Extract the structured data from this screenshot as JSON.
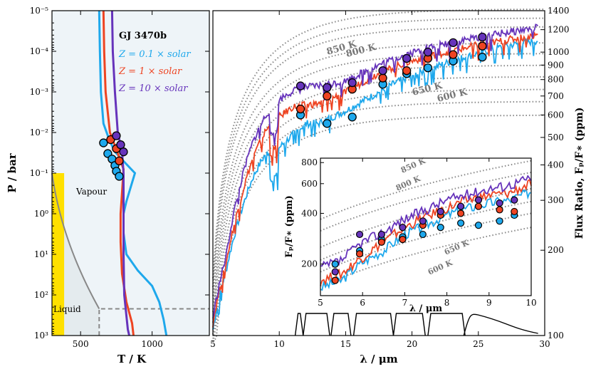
{
  "chart_data": [
    {
      "type": "line",
      "title": "",
      "xlabel": "T / K",
      "ylabel": "P / bar",
      "xlim": [
        300,
        1400
      ],
      "ylim_log_bar": [
        1e-05,
        1000.0
      ],
      "y_axis": "log, inverted",
      "x_ticks": [
        "500",
        "1000"
      ],
      "y_ticks": [
        "10⁻⁵",
        "10⁻⁴",
        "10⁻³",
        "10⁻²",
        "10⁻¹",
        "10⁰",
        "10¹",
        "10²",
        "10³"
      ],
      "legend_title": "GJ 3470b",
      "regions": [
        {
          "name": "Vapour",
          "label": "Vapour"
        },
        {
          "name": "Liquid",
          "label": "Liquid"
        }
      ],
      "series": [
        {
          "name": "Z = 0.1 × solar",
          "color": "#1ea8ec",
          "points": [
            [
              630,
              1e-05
            ],
            [
              635,
              0.0001
            ],
            [
              642,
              0.001
            ],
            [
              660,
              0.006
            ],
            [
              700,
              0.015
            ],
            [
              740,
              0.03
            ],
            [
              820,
              0.06
            ],
            [
              880,
              0.1
            ],
            [
              820,
              0.5
            ],
            [
              800,
              1
            ],
            [
              800,
              3
            ],
            [
              820,
              10
            ],
            [
              900,
              25
            ],
            [
              1000,
              60
            ],
            [
              1050,
              150
            ],
            [
              1080,
              400
            ],
            [
              1100,
              1000
            ]
          ],
          "markers_P_bar": [
            0.018,
            0.033,
            0.045,
            0.065,
            0.09,
            0.12
          ],
          "markers_T_K": [
            660,
            690,
            720,
            740,
            750,
            770
          ]
        },
        {
          "name": "Z = 1 × solar",
          "color": "#ee4422",
          "points": [
            [
              660,
              1e-05
            ],
            [
              665,
              0.0001
            ],
            [
              675,
              0.001
            ],
            [
              705,
              0.01
            ],
            [
              770,
              0.04
            ],
            [
              800,
              0.08
            ],
            [
              790,
              0.3
            ],
            [
              780,
              1
            ],
            [
              780,
              5
            ],
            [
              790,
              30
            ],
            [
              820,
              150
            ],
            [
              860,
              500
            ],
            [
              870,
              1000
            ]
          ],
          "markers_P_bar": [
            0.015,
            0.025,
            0.05
          ],
          "markers_T_K": [
            710,
            750,
            770
          ]
        },
        {
          "name": "Z = 10 × solar",
          "color": "#6633bb",
          "points": [
            [
              720,
              1e-05
            ],
            [
              725,
              0.0001
            ],
            [
              740,
              0.001
            ],
            [
              760,
              0.01
            ],
            [
              790,
              0.03
            ],
            [
              800,
              0.1
            ],
            [
              800,
              1
            ],
            [
              800,
              10
            ],
            [
              805,
              100
            ],
            [
              830,
              700
            ],
            [
              840,
              1000
            ]
          ],
          "markers_P_bar": [
            0.012,
            0.02,
            0.03
          ],
          "markers_T_K": [
            750,
            780,
            800
          ]
        }
      ]
    },
    {
      "type": "line",
      "title": "",
      "xlabel": "λ / μm",
      "ylabel": "Flux Ratio, F_p/F_* (ppm)",
      "xlim": [
        5,
        30
      ],
      "ylim_ppm": [
        100,
        1400
      ],
      "y_axis": "log, right side",
      "x_ticks": [
        "5",
        "10",
        "15",
        "20",
        "25",
        "30"
      ],
      "y_ticks": [
        "100",
        "200",
        "300",
        "400",
        "500",
        "600",
        "700",
        "800",
        "900",
        "1000",
        "1200",
        "1400"
      ],
      "blackbody_labels": [
        "850 K",
        "800 K",
        "650 K",
        "600 K"
      ],
      "blackbody_curves_K": [
        900,
        850,
        800,
        700,
        650,
        600,
        550,
        500,
        450,
        400
      ],
      "series": [
        {
          "name": "Z = 0.1 × solar",
          "color": "#1ea8ec",
          "x": [
            5,
            6,
            7,
            8,
            9,
            10,
            11,
            12,
            13,
            15,
            17,
            19,
            21,
            23,
            25,
            27,
            29.5
          ],
          "y": [
            105,
            170,
            260,
            360,
            440,
            460,
            510,
            560,
            560,
            620,
            700,
            790,
            860,
            930,
            990,
            1050,
            1100
          ],
          "markers_x": [
            11.6,
            13.6,
            15.5,
            17.8,
            19.6,
            21.2,
            23.1,
            25.3
          ],
          "markers_y": [
            600,
            560,
            590,
            770,
            840,
            880,
            930,
            960
          ]
        },
        {
          "name": "Z = 1 × solar",
          "color": "#ee4422",
          "x": [
            5,
            6,
            7,
            8,
            9,
            10,
            11,
            12,
            13,
            15,
            17,
            19,
            21,
            23,
            25,
            27,
            29.5
          ],
          "y": [
            110,
            180,
            290,
            420,
            530,
            590,
            640,
            650,
            660,
            720,
            820,
            900,
            960,
            1010,
            1060,
            1100,
            1150
          ],
          "markers_x": [
            11.6,
            13.6,
            15.5,
            17.8,
            19.6,
            21.2,
            23.1,
            25.3
          ],
          "markers_y": [
            630,
            700,
            740,
            810,
            860,
            950,
            980,
            1050
          ]
        },
        {
          "name": "Z = 10 × solar",
          "color": "#6633bb",
          "x": [
            5,
            6,
            7,
            8,
            9,
            10,
            11,
            12,
            13,
            15,
            17,
            19,
            21,
            23,
            25,
            27,
            29.5
          ],
          "y": [
            115,
            190,
            330,
            480,
            600,
            680,
            730,
            750,
            760,
            790,
            880,
            960,
            1030,
            1080,
            1130,
            1170,
            1220
          ],
          "markers_x": [
            11.6,
            13.6,
            15.5,
            17.8,
            19.6,
            21.2,
            23.1,
            25.3
          ],
          "markers_y": [
            760,
            750,
            780,
            860,
            950,
            1000,
            1080,
            1130
          ]
        }
      ],
      "filter_bands_um": [
        [
          11.2,
          11.8
        ],
        [
          11.8,
          13.8
        ],
        [
          13.9,
          15.4
        ],
        [
          15.6,
          18.6
        ],
        [
          18.6,
          21.0
        ],
        [
          21.2,
          24.0
        ],
        [
          23.9,
          29.5
        ]
      ]
    },
    {
      "type": "line",
      "title": "",
      "xlabel": "λ / μm",
      "ylabel": "F_p/F_* (ppm)",
      "xlim": [
        5,
        10
      ],
      "ylim_ppm": [
        130,
        850
      ],
      "y_axis": "log",
      "x_ticks": [
        "5",
        "6",
        "7",
        "8",
        "9",
        "10"
      ],
      "y_ticks": [
        "200",
        "400",
        "600",
        "800"
      ],
      "blackbody_labels": [
        "850 K",
        "800 K",
        "650 K",
        "600 K"
      ],
      "series": [
        {
          "name": "Z = 0.1 × solar",
          "color": "#1ea8ec",
          "x": [
            5,
            5.5,
            6,
            6.5,
            7,
            7.5,
            8,
            8.5,
            9,
            9.5,
            10
          ],
          "y": [
            145,
            160,
            205,
            240,
            300,
            340,
            390,
            430,
            460,
            480,
            540
          ],
          "markers_x": [
            5.35,
            5.93,
            6.45,
            6.95,
            7.43,
            7.85,
            8.33,
            8.75,
            9.25,
            9.6
          ],
          "markers_y": [
            200,
            240,
            280,
            290,
            300,
            330,
            350,
            340,
            360,
            390
          ]
        },
        {
          "name": "Z = 1 × solar",
          "color": "#ee4422",
          "x": [
            5,
            5.5,
            6,
            6.5,
            7,
            7.5,
            8,
            8.5,
            9,
            9.5,
            10
          ],
          "y": [
            160,
            175,
            220,
            270,
            330,
            380,
            430,
            480,
            510,
            530,
            600
          ],
          "markers_x": [
            5.35,
            5.93,
            6.45,
            6.95,
            7.43,
            7.85,
            8.33,
            8.75,
            9.25,
            9.6
          ],
          "markers_y": [
            160,
            230,
            270,
            280,
            340,
            390,
            400,
            440,
            420,
            410
          ]
        },
        {
          "name": "Z = 10 × solar",
          "color": "#6633bb",
          "x": [
            5,
            5.5,
            6,
            6.5,
            7,
            7.5,
            8,
            8.5,
            9,
            9.5,
            10
          ],
          "y": [
            190,
            210,
            270,
            310,
            370,
            420,
            480,
            520,
            560,
            590,
            650
          ],
          "markers_x": [
            5.35,
            5.93,
            6.45,
            6.95,
            7.43,
            7.85,
            8.33,
            8.75,
            9.25,
            9.6
          ],
          "markers_y": [
            180,
            300,
            300,
            330,
            360,
            410,
            440,
            480,
            460,
            480
          ]
        }
      ]
    }
  ],
  "legend": {
    "title": "GJ 3470b",
    "entries": [
      {
        "label": "Z = 0.1 × solar",
        "color": "#1ea8ec"
      },
      {
        "label": "Z = 1 × solar",
        "color": "#ee4422"
      },
      {
        "label": "Z = 10 × solar",
        "color": "#6633bb"
      }
    ]
  },
  "labels": {
    "left_x": "T / K",
    "left_y": "P / bar",
    "right_x": "λ / μm",
    "right_y": "Flux Ratio, Fₚ/F∗ (ppm)",
    "inset_x": "λ / μm",
    "inset_y": "Fₚ/F∗ (ppm)",
    "vapour": "Vapour",
    "liquid": "Liquid"
  }
}
